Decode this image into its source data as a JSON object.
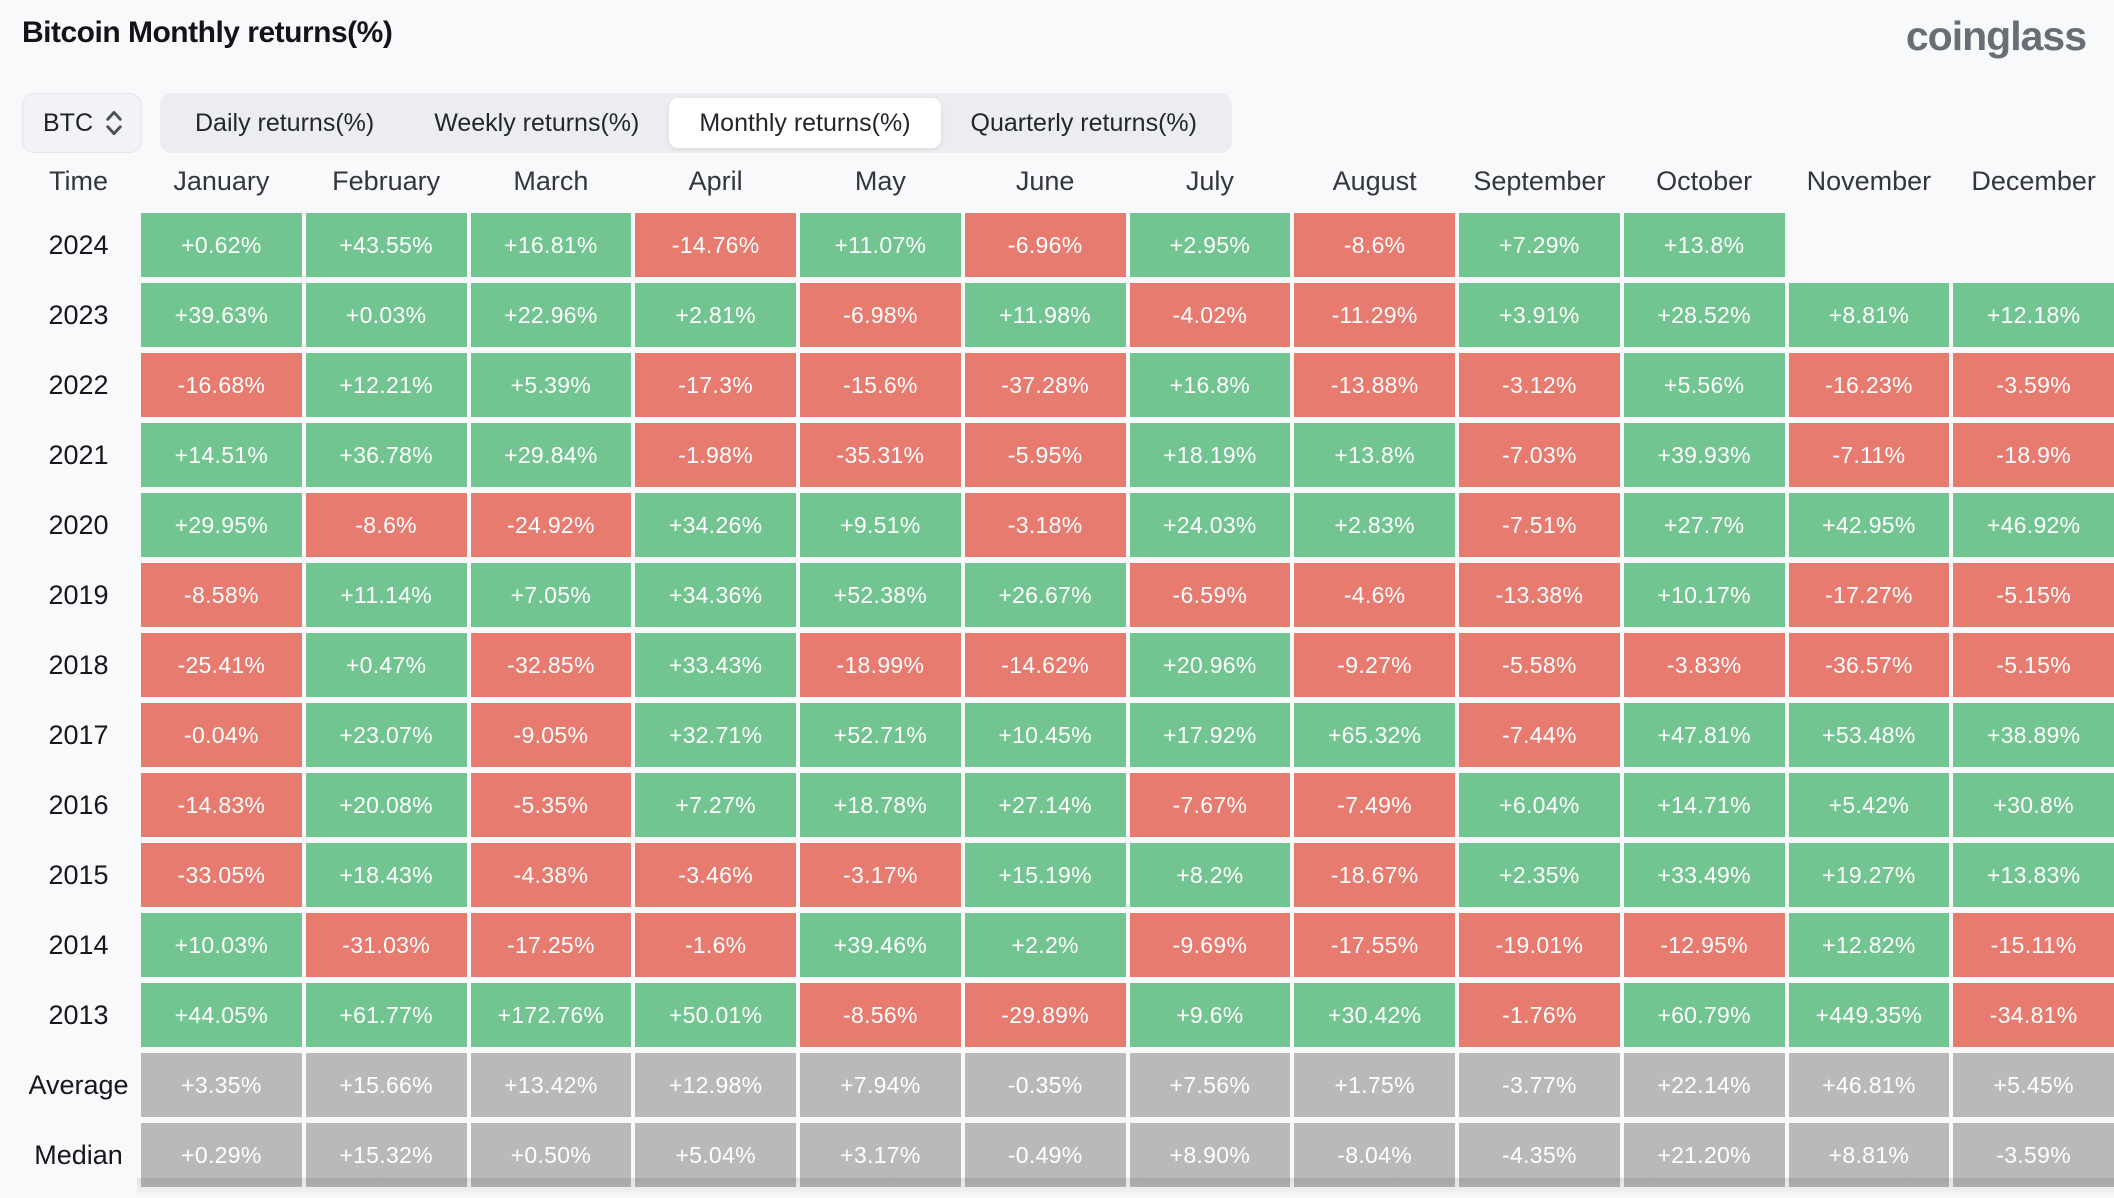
{
  "page": {
    "title": "Bitcoin Monthly returns(%)",
    "logo": "coinglass"
  },
  "controls": {
    "symbol_selector": {
      "value": "BTC"
    },
    "tabs": [
      {
        "label": "Daily returns(%)",
        "active": false
      },
      {
        "label": "Weekly returns(%)",
        "active": false
      },
      {
        "label": "Monthly returns(%)",
        "active": true
      },
      {
        "label": "Quarterly returns(%)",
        "active": false
      }
    ]
  },
  "chart_data": {
    "type": "heatmap",
    "title": "Bitcoin Monthly returns(%)",
    "unit": "%",
    "legend_position": "none",
    "colors": {
      "positive": "#72c591",
      "negative": "#e87b70",
      "summary": "#b9b9bb"
    },
    "columns": [
      "Time",
      "January",
      "February",
      "March",
      "April",
      "May",
      "June",
      "July",
      "August",
      "September",
      "October",
      "November",
      "December"
    ],
    "rows": [
      {
        "label": "2024",
        "summary": false,
        "values": [
          "+0.62%",
          "+43.55%",
          "+16.81%",
          "-14.76%",
          "+11.07%",
          "-6.96%",
          "+2.95%",
          "-8.6%",
          "+7.29%",
          "+13.8%",
          "",
          ""
        ]
      },
      {
        "label": "2023",
        "summary": false,
        "values": [
          "+39.63%",
          "+0.03%",
          "+22.96%",
          "+2.81%",
          "-6.98%",
          "+11.98%",
          "-4.02%",
          "-11.29%",
          "+3.91%",
          "+28.52%",
          "+8.81%",
          "+12.18%"
        ]
      },
      {
        "label": "2022",
        "summary": false,
        "values": [
          "-16.68%",
          "+12.21%",
          "+5.39%",
          "-17.3%",
          "-15.6%",
          "-37.28%",
          "+16.8%",
          "-13.88%",
          "-3.12%",
          "+5.56%",
          "-16.23%",
          "-3.59%"
        ]
      },
      {
        "label": "2021",
        "summary": false,
        "values": [
          "+14.51%",
          "+36.78%",
          "+29.84%",
          "-1.98%",
          "-35.31%",
          "-5.95%",
          "+18.19%",
          "+13.8%",
          "-7.03%",
          "+39.93%",
          "-7.11%",
          "-18.9%"
        ]
      },
      {
        "label": "2020",
        "summary": false,
        "values": [
          "+29.95%",
          "-8.6%",
          "-24.92%",
          "+34.26%",
          "+9.51%",
          "-3.18%",
          "+24.03%",
          "+2.83%",
          "-7.51%",
          "+27.7%",
          "+42.95%",
          "+46.92%"
        ]
      },
      {
        "label": "2019",
        "summary": false,
        "values": [
          "-8.58%",
          "+11.14%",
          "+7.05%",
          "+34.36%",
          "+52.38%",
          "+26.67%",
          "-6.59%",
          "-4.6%",
          "-13.38%",
          "+10.17%",
          "-17.27%",
          "-5.15%"
        ]
      },
      {
        "label": "2018",
        "summary": false,
        "values": [
          "-25.41%",
          "+0.47%",
          "-32.85%",
          "+33.43%",
          "-18.99%",
          "-14.62%",
          "+20.96%",
          "-9.27%",
          "-5.58%",
          "-3.83%",
          "-36.57%",
          "-5.15%"
        ]
      },
      {
        "label": "2017",
        "summary": false,
        "values": [
          "-0.04%",
          "+23.07%",
          "-9.05%",
          "+32.71%",
          "+52.71%",
          "+10.45%",
          "+17.92%",
          "+65.32%",
          "-7.44%",
          "+47.81%",
          "+53.48%",
          "+38.89%"
        ]
      },
      {
        "label": "2016",
        "summary": false,
        "values": [
          "-14.83%",
          "+20.08%",
          "-5.35%",
          "+7.27%",
          "+18.78%",
          "+27.14%",
          "-7.67%",
          "-7.49%",
          "+6.04%",
          "+14.71%",
          "+5.42%",
          "+30.8%"
        ]
      },
      {
        "label": "2015",
        "summary": false,
        "values": [
          "-33.05%",
          "+18.43%",
          "-4.38%",
          "-3.46%",
          "-3.17%",
          "+15.19%",
          "+8.2%",
          "-18.67%",
          "+2.35%",
          "+33.49%",
          "+19.27%",
          "+13.83%"
        ]
      },
      {
        "label": "2014",
        "summary": false,
        "values": [
          "+10.03%",
          "-31.03%",
          "-17.25%",
          "-1.6%",
          "+39.46%",
          "+2.2%",
          "-9.69%",
          "-17.55%",
          "-19.01%",
          "-12.95%",
          "+12.82%",
          "-15.11%"
        ]
      },
      {
        "label": "2013",
        "summary": false,
        "values": [
          "+44.05%",
          "+61.77%",
          "+172.76%",
          "+50.01%",
          "-8.56%",
          "-29.89%",
          "+9.6%",
          "+30.42%",
          "-1.76%",
          "+60.79%",
          "+449.35%",
          "-34.81%"
        ]
      },
      {
        "label": "Average",
        "summary": true,
        "values": [
          "+3.35%",
          "+15.66%",
          "+13.42%",
          "+12.98%",
          "+7.94%",
          "-0.35%",
          "+7.56%",
          "+1.75%",
          "-3.77%",
          "+22.14%",
          "+46.81%",
          "+5.45%"
        ]
      },
      {
        "label": "Median",
        "summary": true,
        "values": [
          "+0.29%",
          "+15.32%",
          "+0.50%",
          "+5.04%",
          "+3.17%",
          "-0.49%",
          "+8.90%",
          "-8.04%",
          "-4.35%",
          "+21.20%",
          "+8.81%",
          "-3.59%"
        ]
      }
    ]
  }
}
